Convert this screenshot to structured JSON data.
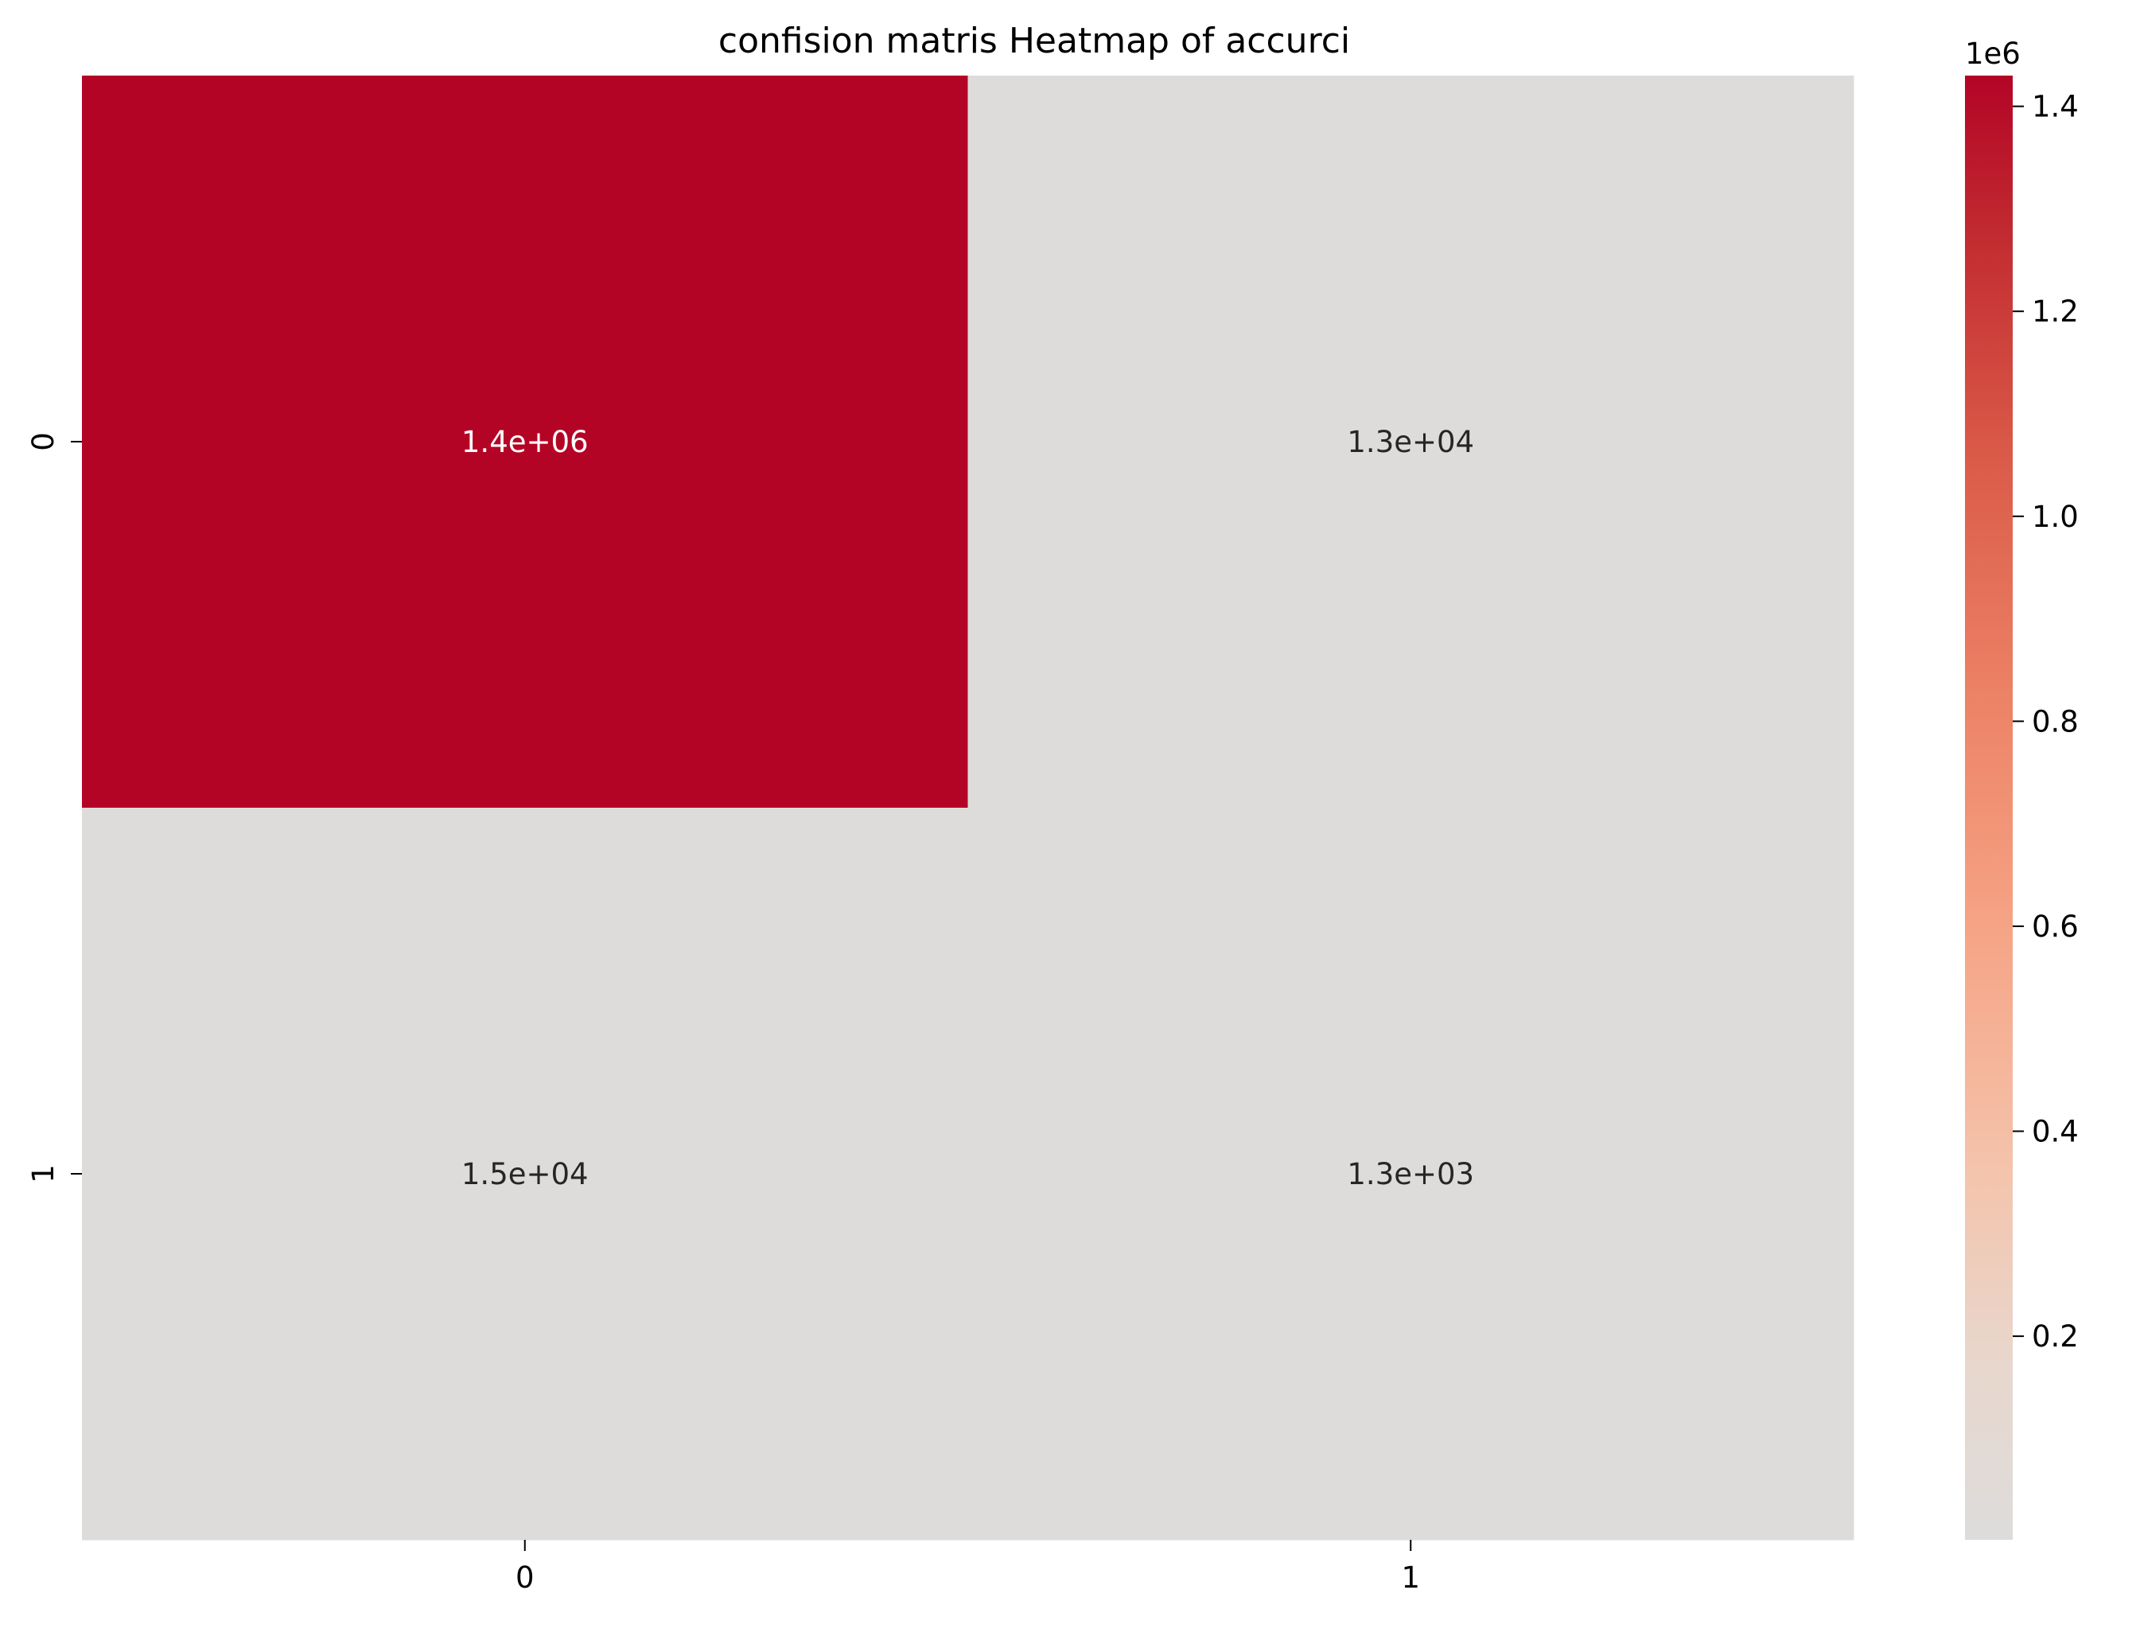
{
  "chart_data": {
    "type": "heatmap",
    "title": "confision matris Heatmap of accurci",
    "xlabel": "",
    "ylabel": "",
    "x_categories": [
      "0",
      "1"
    ],
    "y_categories": [
      "0",
      "1"
    ],
    "values": [
      [
        1430000,
        13000
      ],
      [
        15000,
        1300
      ]
    ],
    "annotations": [
      [
        "1.4e+06",
        "1.3e+04"
      ],
      [
        "1.5e+04",
        "1.3e+03"
      ]
    ],
    "colormap": "coolwarm (centered)",
    "colors": {
      "high": "#b40426",
      "low": "#dddcdb",
      "annotation_on_dark": "#ffffff",
      "annotation_on_light": "#262626"
    },
    "colorbar": {
      "range": [
        1300,
        1430000
      ],
      "ticks": [
        0.2,
        0.4,
        0.6,
        0.8,
        1.0,
        1.2,
        1.4
      ],
      "tick_labels": [
        "0.2",
        "0.4",
        "0.6",
        "0.8",
        "1.0",
        "1.2",
        "1.4"
      ],
      "exponent_label": "1e6",
      "placement": "right"
    }
  }
}
